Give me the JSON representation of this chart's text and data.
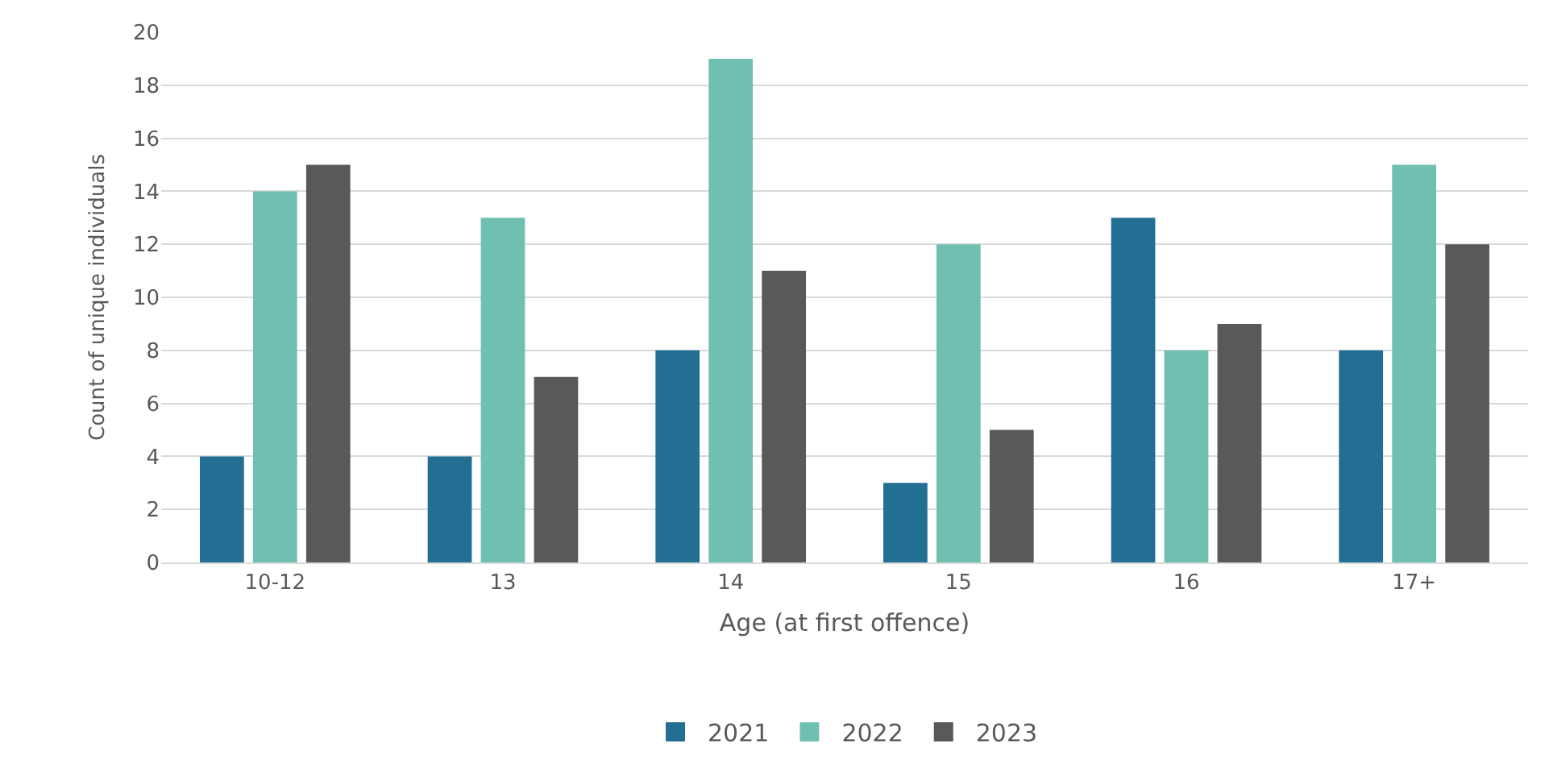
{
  "chart_data": {
    "type": "bar",
    "xlabel": "Age (at first offence)",
    "ylabel": "Count of unique individuals",
    "categories": [
      "10-12",
      "13",
      "14",
      "15",
      "16",
      "17+"
    ],
    "series": [
      {
        "name": "2021",
        "color": "#236f93",
        "values": [
          4,
          4,
          8,
          3,
          13,
          8
        ]
      },
      {
        "name": "2022",
        "color": "#70c0b2",
        "values": [
          14,
          13,
          19,
          12,
          8,
          15
        ]
      },
      {
        "name": "2023",
        "color": "#595959",
        "values": [
          15,
          7,
          11,
          5,
          9,
          12
        ]
      }
    ],
    "ylim": [
      0,
      20
    ],
    "yticks": [
      0,
      2,
      4,
      6,
      8,
      10,
      12,
      14,
      16,
      18,
      20
    ],
    "grid": "y",
    "legend": "bottom"
  }
}
